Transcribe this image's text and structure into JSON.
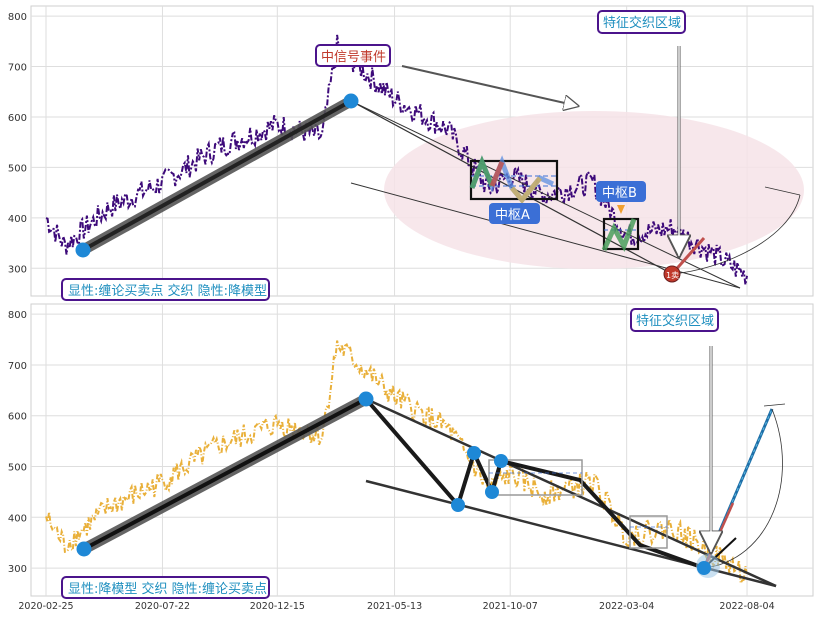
{
  "colors": {
    "top_price": "#3d0a7a",
    "bottom_price": "#e9b03a",
    "box_border": "#4b148c",
    "box_text": "#1f8fbf",
    "event_text": "#c0392b",
    "pivot_label_bg": "#3b6fd6",
    "ellipse": "#f6e3e8",
    "marker": "#1e88d6"
  },
  "top_panel": {
    "left_label": "显性:缠论买卖点 交织 隐性:降模型",
    "event_label": "中信号事件",
    "region_label": "特征交织区域",
    "pivot_a_label": "中枢A",
    "pivot_b_label": "中枢B",
    "signal_badge": "1卖"
  },
  "bottom_panel": {
    "left_label": "显性:降模型 交织 隐性:缠论买卖点",
    "region_label": "特征交织区域"
  },
  "chart_data": [
    {
      "type": "line",
      "panel": "top",
      "yticks": [
        300,
        400,
        500,
        600,
        700,
        800
      ],
      "ylim": [
        245,
        820
      ],
      "x": [
        "2020-02-25",
        "2020-03-20",
        "2020-05-15",
        "2020-07-22",
        "2020-10-01",
        "2020-12-15",
        "2021-02-10",
        "2021-03-01",
        "2021-05-13",
        "2021-07-20",
        "2021-09-10",
        "2021-10-07",
        "2021-11-20",
        "2022-01-20",
        "2022-03-04",
        "2022-05-01",
        "2022-06-10",
        "2022-08-04"
      ],
      "series": [
        {
          "values": [
            400,
            345,
            420,
            470,
            540,
            585,
            560,
            740,
            635,
            575,
            455,
            485,
            445,
            470,
            365,
            380,
            340,
            285
          ]
        }
      ],
      "xtick_labels": [
        "2020-02-25",
        "2020-07-22",
        "2020-12-15",
        "2021-05-13",
        "2021-10-07",
        "2022-03-04",
        "2022-08-04"
      ]
    },
    {
      "type": "line",
      "panel": "bottom",
      "yticks": [
        300,
        400,
        500,
        600,
        700,
        800
      ],
      "ylim": [
        245,
        820
      ],
      "x": [
        "2020-02-25",
        "2020-03-20",
        "2020-05-15",
        "2020-07-22",
        "2020-10-01",
        "2020-12-15",
        "2021-02-10",
        "2021-03-01",
        "2021-05-13",
        "2021-07-20",
        "2021-09-10",
        "2021-10-07",
        "2021-11-20",
        "2022-01-20",
        "2022-03-04",
        "2022-05-01",
        "2022-06-10",
        "2022-08-04"
      ],
      "series": [
        {
          "values": [
            400,
            345,
            420,
            470,
            540,
            585,
            560,
            740,
            635,
            575,
            455,
            485,
            445,
            470,
            365,
            380,
            340,
            285
          ]
        }
      ],
      "xtick_labels": [
        "2020-02-25",
        "2020-07-22",
        "2020-12-15",
        "2021-05-13",
        "2021-10-07",
        "2022-03-04",
        "2022-08-04"
      ]
    }
  ]
}
